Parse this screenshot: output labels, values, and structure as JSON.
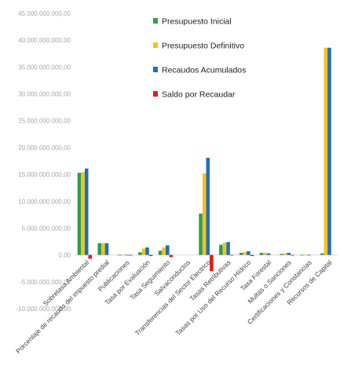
{
  "chart_data": {
    "type": "bar",
    "title": "",
    "xlabel": "",
    "ylabel": "",
    "ylim": [
      -10000000000,
      45000000000
    ],
    "ytick_step": 5000000000,
    "ytick_labels": [
      "45.000.000.000,00",
      "40.000.000.000,00",
      "35.000.000.000,00",
      "30.000.000.000,00",
      "25.000.000.000,00",
      "20.000.000.000,00",
      "15.000.000.000,00",
      "10.000.000.000,00",
      "5.000.000.000,00",
      "0,00",
      "-5.000.000.000,00",
      "-10.000.000.000,00"
    ],
    "grid": false,
    "legend_position": "top-center",
    "categories": [
      "Sobretasa Ambiental",
      "Porcentaje de recaudo del impuesto predial",
      "Publicaciones",
      "Tasa por Evaluación",
      "Tasa Seguimiento",
      "Salvaconductos",
      "Transferencias del Sector Electrico",
      "Tasas Retributivas",
      "Tasas por Uso del Recurso Hídrico",
      "Tasa Forestal",
      "Multas o Sanciones",
      "Certificaciones y Constancias",
      "Recursos de Capital"
    ],
    "series": [
      {
        "name": "Presupuesto Inicial",
        "color": "#2e9e4f",
        "values": [
          15300000000,
          2200000000,
          20000000,
          500000000,
          800000000,
          0,
          7700000000,
          1900000000,
          400000000,
          400000000,
          200000000,
          20000000,
          300000000
        ]
      },
      {
        "name": "Presupuesto Definitivo",
        "color": "#f5c21b",
        "values": [
          15400000000,
          2200000000,
          20000000,
          1200000000,
          1400000000,
          0,
          15200000000,
          2300000000,
          500000000,
          400000000,
          300000000,
          20000000,
          38600000000
        ]
      },
      {
        "name": "Recaudos Acumulados",
        "color": "#1f6fbf",
        "values": [
          16100000000,
          2200000000,
          30000000,
          1400000000,
          1800000000,
          0,
          18100000000,
          2400000000,
          700000000,
          300000000,
          400000000,
          20000000,
          38600000000
        ]
      },
      {
        "name": "Saldo por Recaudar",
        "color": "#e31b1b",
        "values": [
          -700000000,
          0,
          -10000000,
          -200000000,
          -400000000,
          0,
          -3000000000,
          -100000000,
          -200000000,
          0,
          -100000000,
          0,
          0
        ]
      }
    ]
  }
}
